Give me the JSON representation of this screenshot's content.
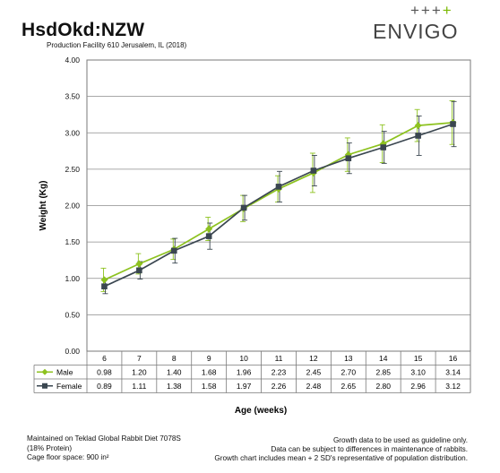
{
  "header": {
    "title": "HsdOkd:NZW",
    "subtitle": "Production Facility 610 Jerusalem, IL (2018)"
  },
  "logo": {
    "marks": "+++",
    "accent_mark": "+",
    "text": "ENVIGO",
    "accent_color": "#7ab800"
  },
  "chart_data": {
    "type": "line",
    "xlabel": "Age (weeks)",
    "ylabel": "Weight (Kg)",
    "categories": [
      "6",
      "7",
      "8",
      "9",
      "10",
      "11",
      "12",
      "13",
      "14",
      "15",
      "16"
    ],
    "ylim": [
      0,
      4
    ],
    "yticks": [
      "0.00",
      "0.50",
      "1.00",
      "1.50",
      "2.00",
      "2.50",
      "3.00",
      "3.50",
      "4.00"
    ],
    "grid": true,
    "legend_placement": "data table below plot",
    "series": [
      {
        "name": "Male",
        "color": "#8dc21f",
        "marker": "diamond",
        "values": [
          0.98,
          1.2,
          1.4,
          1.68,
          1.96,
          2.23,
          2.45,
          2.7,
          2.85,
          3.1,
          3.14
        ],
        "labels": [
          "0.98",
          "1.20",
          "1.40",
          "1.68",
          "1.96",
          "2.23",
          "2.45",
          "2.70",
          "2.85",
          "3.10",
          "3.14"
        ],
        "error": [
          0.16,
          0.14,
          0.14,
          0.16,
          0.18,
          0.18,
          0.27,
          0.23,
          0.26,
          0.22,
          0.3
        ]
      },
      {
        "name": "Female",
        "color": "#3a4650",
        "marker": "square",
        "values": [
          0.89,
          1.11,
          1.38,
          1.58,
          1.97,
          2.26,
          2.48,
          2.65,
          2.8,
          2.96,
          3.12
        ],
        "labels": [
          "0.89",
          "1.11",
          "1.38",
          "1.58",
          "1.97",
          "2.26",
          "2.48",
          "2.65",
          "2.80",
          "2.96",
          "3.12"
        ],
        "error": [
          0.1,
          0.12,
          0.17,
          0.18,
          0.17,
          0.21,
          0.21,
          0.21,
          0.22,
          0.27,
          0.31
        ]
      }
    ]
  },
  "footer": {
    "left_lines": [
      "Maintained on Teklad Global Rabbit Diet 7078S",
      "(18% Protein)",
      "Cage floor space: 900 in²"
    ],
    "right_lines": [
      "Growth data to be used as guideline only.",
      "Data can be subject to differences in maintenance of rabbits.",
      "Growth chart includes mean + 2 SD's representative of population distribution."
    ]
  }
}
